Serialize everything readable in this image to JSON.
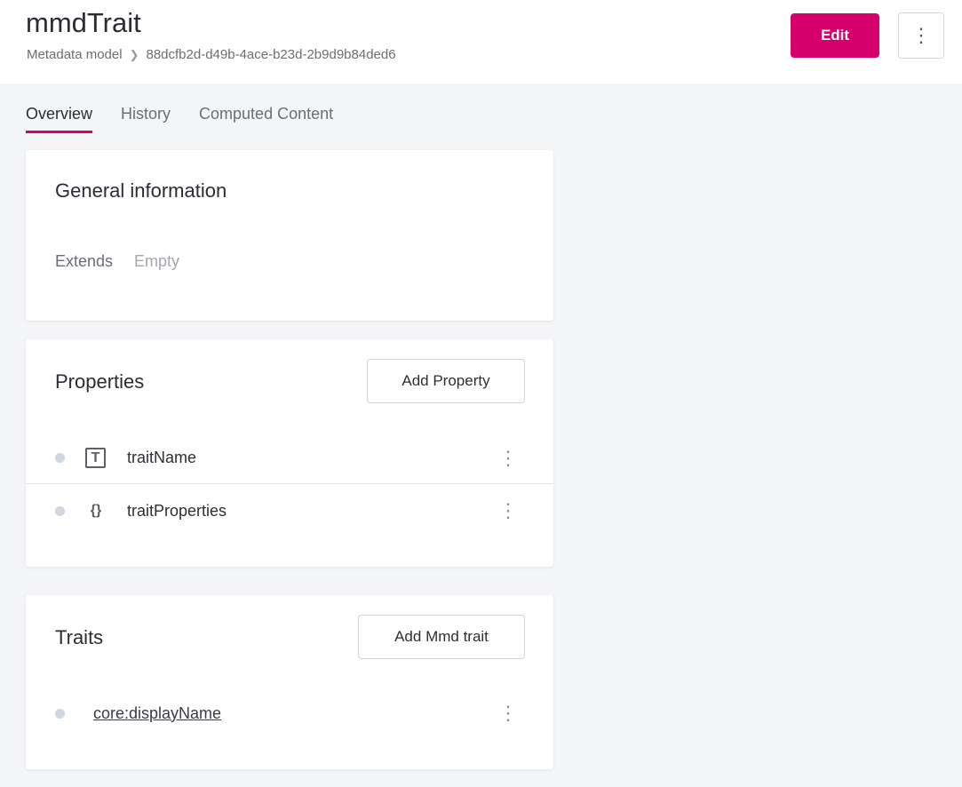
{
  "header": {
    "title": "mmdTrait",
    "breadcrumb": [
      "Metadata model",
      "88dcfb2d-d49b-4ace-b23d-2b9d9b84ded6"
    ],
    "edit_label": "Edit",
    "more_icon": "kebab-icon"
  },
  "tabs": [
    {
      "label": "Overview",
      "active": true
    },
    {
      "label": "History"
    },
    {
      "label": "Computed Content"
    }
  ],
  "general": {
    "title": "General information",
    "extends_label": "Extends",
    "extends_value": "Empty"
  },
  "properties": {
    "title": "Properties",
    "add_label": "Add Property",
    "items": [
      {
        "name": "traitName",
        "icon": "text-type-icon",
        "glyph": "T"
      },
      {
        "name": "traitProperties",
        "icon": "object-type-icon",
        "glyph": "{}"
      }
    ]
  },
  "traits": {
    "title": "Traits",
    "add_label": "Add Mmd trait",
    "items": [
      {
        "name": "core:displayName"
      }
    ]
  },
  "colors": {
    "accent": "#d6006b",
    "background": "#f4f5f7"
  }
}
